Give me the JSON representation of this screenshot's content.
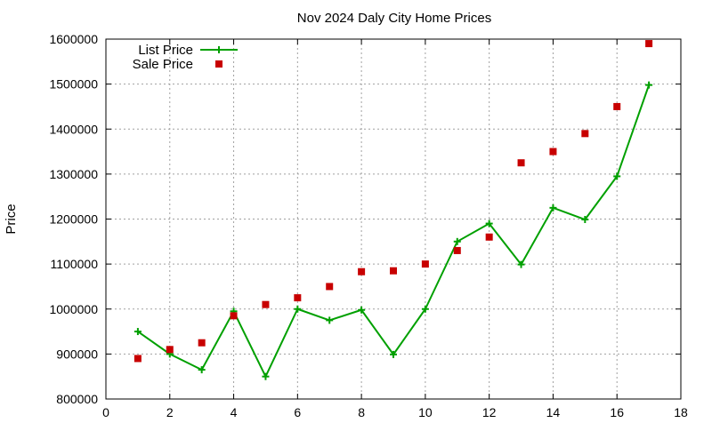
{
  "chart_data": {
    "type": "line",
    "title": "Nov 2024 Daly City Home Prices",
    "xlabel": "",
    "ylabel": "Price",
    "xlim": [
      0,
      18
    ],
    "ylim": [
      800000,
      1600000
    ],
    "x_ticks": [
      0,
      2,
      4,
      6,
      8,
      10,
      12,
      14,
      16,
      18
    ],
    "y_ticks": [
      800000,
      900000,
      1000000,
      1100000,
      1200000,
      1300000,
      1400000,
      1500000,
      1600000
    ],
    "grid": true,
    "legend_position": "top-left",
    "series": [
      {
        "name": "List Price",
        "style": "line-with-plus-markers",
        "color": "#00a000",
        "x": [
          1,
          2,
          3,
          4,
          5,
          6,
          7,
          8,
          9,
          10,
          11,
          12,
          13,
          14,
          15,
          16,
          17
        ],
        "y": [
          950000,
          900000,
          865000,
          995000,
          850000,
          1000000,
          975000,
          998000,
          899000,
          1000000,
          1150000,
          1190000,
          1099000,
          1225000,
          1199000,
          1295000,
          1498000
        ]
      },
      {
        "name": "Sale Price",
        "style": "square-points",
        "color": "#c80000",
        "x": [
          1,
          2,
          3,
          4,
          5,
          6,
          7,
          8,
          9,
          10,
          11,
          12,
          13,
          14,
          15,
          16,
          17
        ],
        "y": [
          890000,
          910000,
          925000,
          985000,
          1010000,
          1025000,
          1050000,
          1083000,
          1085000,
          1100000,
          1130000,
          1160000,
          1325000,
          1350000,
          1390000,
          1450000,
          1590000
        ]
      }
    ]
  }
}
